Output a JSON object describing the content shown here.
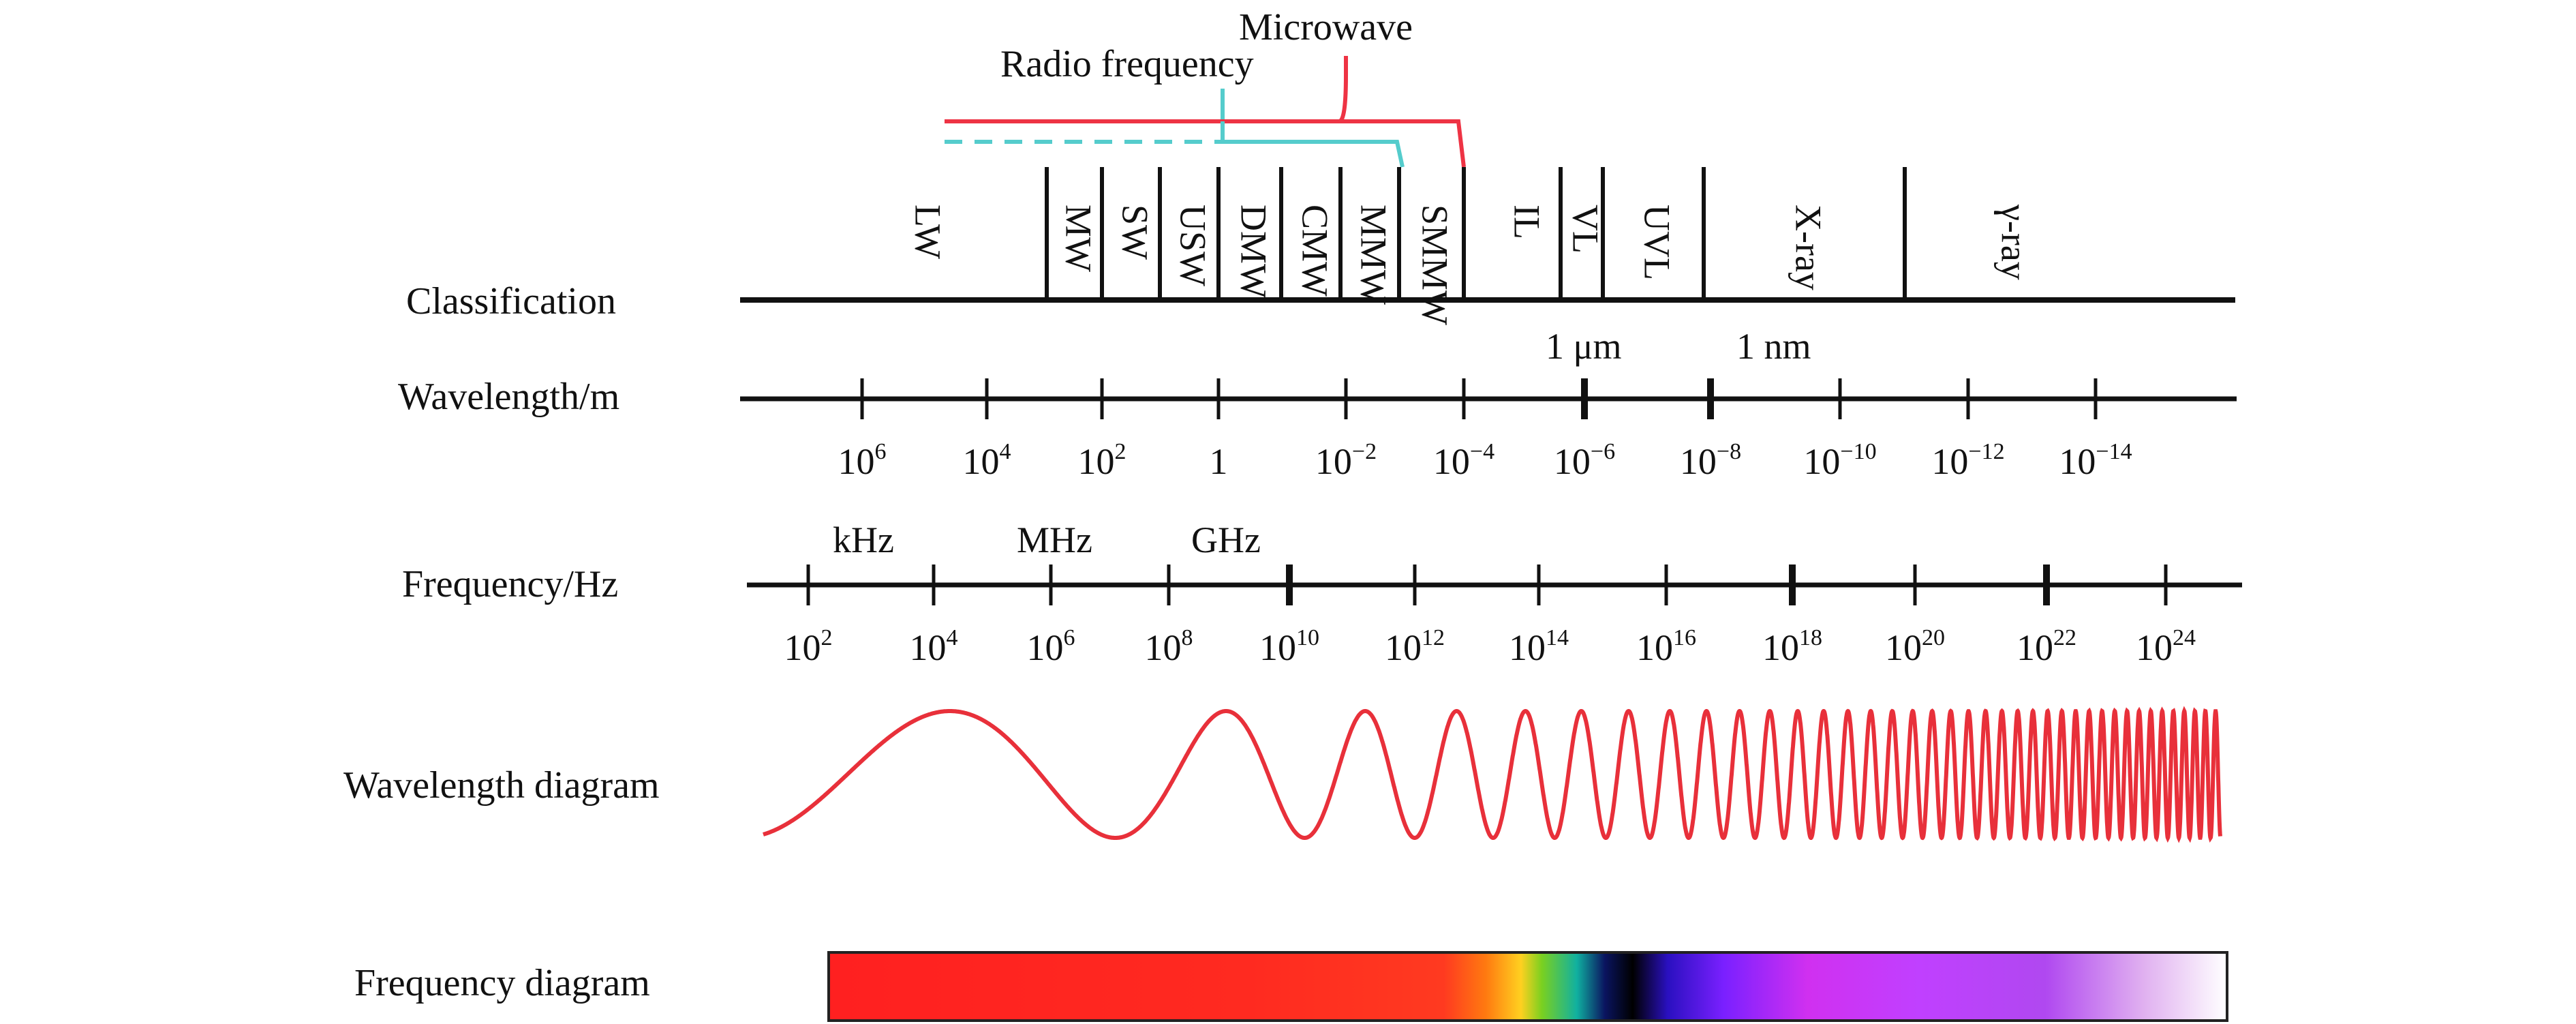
{
  "row_labels": {
    "classification": "Classification",
    "wavelength": "Wavelength/m",
    "frequency": "Frequency/Hz",
    "wavelength_diagram": "Wavelength diagram",
    "frequency_diagram": "Frequency diagram"
  },
  "groups": {
    "microwave": "Microwave",
    "radio_frequency": "Radio frequency"
  },
  "bands": [
    "LW",
    "MW",
    "SW",
    "USW",
    "DMW",
    "CMW",
    "MMW",
    "SMMW",
    "IL",
    "VL",
    "UVL",
    "X-ray",
    "γ-ray"
  ],
  "wavelength_units": [
    "1 μm",
    "1 nm"
  ],
  "wavelength_ticks": [
    {
      "base": "10",
      "exp": "6"
    },
    {
      "base": "10",
      "exp": "4"
    },
    {
      "base": "10",
      "exp": "2"
    },
    {
      "base": "1",
      "exp": ""
    },
    {
      "base": "10",
      "exp": "−2"
    },
    {
      "base": "10",
      "exp": "−4"
    },
    {
      "base": "10",
      "exp": "−6"
    },
    {
      "base": "10",
      "exp": "−8"
    },
    {
      "base": "10",
      "exp": "−10"
    },
    {
      "base": "10",
      "exp": "−12"
    },
    {
      "base": "10",
      "exp": "−14"
    }
  ],
  "frequency_units": [
    "kHz",
    "MHz",
    "GHz"
  ],
  "frequency_ticks": [
    {
      "base": "10",
      "exp": "2"
    },
    {
      "base": "10",
      "exp": "4"
    },
    {
      "base": "10",
      "exp": "6"
    },
    {
      "base": "10",
      "exp": "8"
    },
    {
      "base": "10",
      "exp": "10"
    },
    {
      "base": "10",
      "exp": "12"
    },
    {
      "base": "10",
      "exp": "14"
    },
    {
      "base": "10",
      "exp": "16"
    },
    {
      "base": "10",
      "exp": "18"
    },
    {
      "base": "10",
      "exp": "20"
    },
    {
      "base": "10",
      "exp": "22"
    },
    {
      "base": "10",
      "exp": "24"
    }
  ],
  "colors": {
    "axis": "#111111",
    "microwave": "#ee3344",
    "radio": "#55cccc",
    "wave": "#e8303a"
  },
  "spectrum_colors": [
    "#ff2020",
    "#ff2a20",
    "#ff3a20",
    "#ff7a10",
    "#ffd020",
    "#7ad020",
    "#10b0a0",
    "#0a1460",
    "#000000",
    "#2a10c0",
    "#7a20ff",
    "#d030f0",
    "#c040ff",
    "#b048f0",
    "#e0b0f0",
    "#ffffff"
  ]
}
